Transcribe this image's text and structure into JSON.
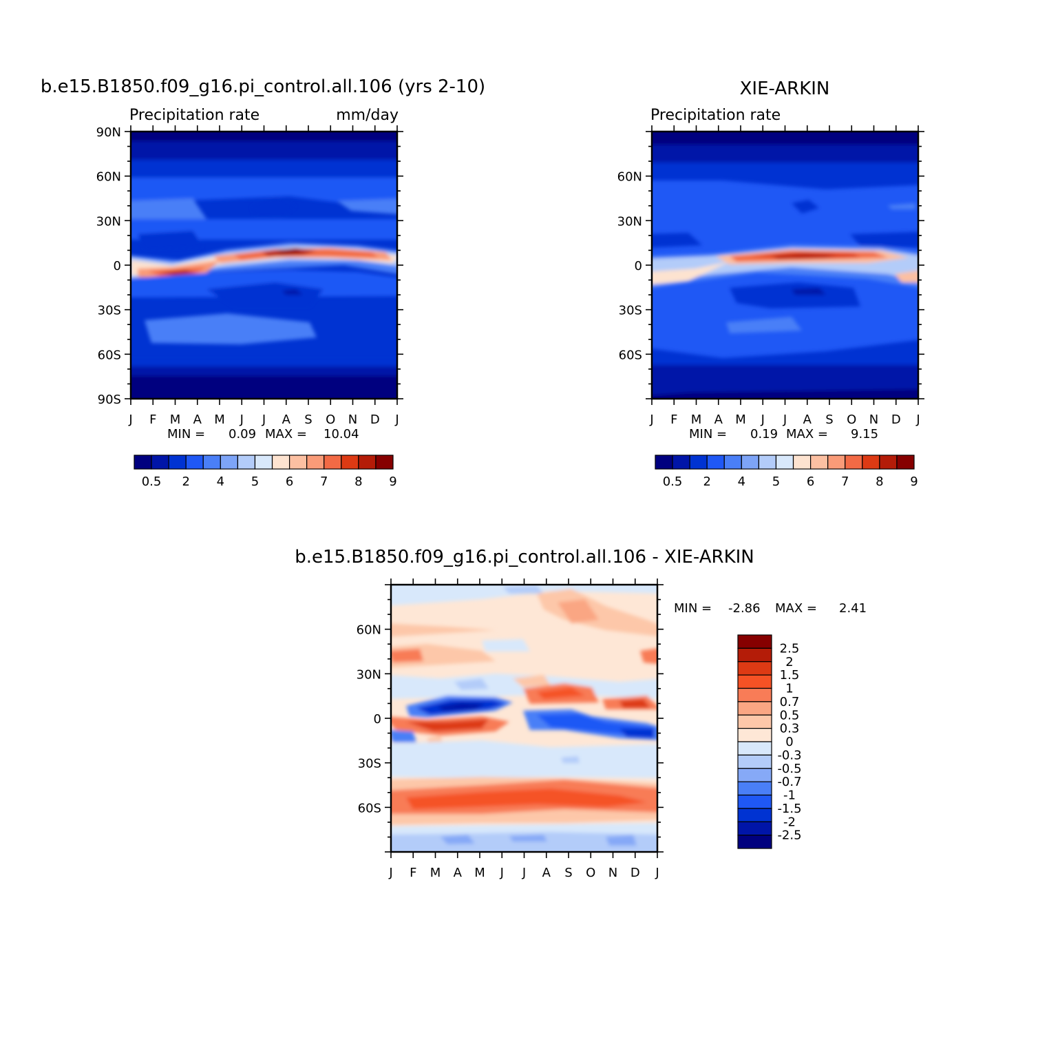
{
  "chart_data": [
    {
      "type": "heatmap",
      "title": "b.e15.B1850.f09_g16.pi_control.all.106 (yrs 2-10)",
      "subtitle_left": "Precipitation rate",
      "subtitle_right": "mm/day",
      "x_ticks": [
        "J",
        "F",
        "M",
        "A",
        "M",
        "J",
        "J",
        "A",
        "S",
        "O",
        "N",
        "D",
        "J"
      ],
      "y_ticks": [
        "90N",
        "60N",
        "30N",
        "0",
        "30S",
        "60S",
        "90S"
      ],
      "ylim": [
        -90,
        90
      ],
      "min_label": "MIN =",
      "min_value": "0.09",
      "max_label": "MAX =",
      "max_value": "10.04",
      "colorbar_labels": [
        "0.5",
        "2",
        "4",
        "5",
        "6",
        "7",
        "8",
        "9"
      ],
      "colorbar_colors": [
        "#00007f",
        "#0015a8",
        "#0033d2",
        "#1f58f5",
        "#4a7ff7",
        "#7da4f7",
        "#b3ccf9",
        "#d8e8fb",
        "#fde3d0",
        "#fcc0a2",
        "#f99b78",
        "#f26a45",
        "#dd3a14",
        "#b41c08",
        "#860000"
      ],
      "peaks": {
        "itcz_max": 10.04,
        "polar_min": 0.09
      }
    },
    {
      "type": "heatmap",
      "title": "XIE-ARKIN",
      "subtitle_left": "Precipitation rate",
      "x_ticks": [
        "J",
        "F",
        "M",
        "A",
        "M",
        "J",
        "J",
        "A",
        "S",
        "O",
        "N",
        "D",
        "J"
      ],
      "y_ticks": [
        "60N",
        "30N",
        "0",
        "30S",
        "60S"
      ],
      "ylim": [
        -90,
        90
      ],
      "min_label": "MIN =",
      "min_value": "0.19",
      "max_label": "MAX =",
      "max_value": "9.15",
      "colorbar_labels": [
        "0.5",
        "2",
        "4",
        "5",
        "6",
        "7",
        "8",
        "9"
      ],
      "colorbar_colors": [
        "#00007f",
        "#0015a8",
        "#0033d2",
        "#1f58f5",
        "#4a7ff7",
        "#7da4f7",
        "#b3ccf9",
        "#d8e8fb",
        "#fde3d0",
        "#fcc0a2",
        "#f99b78",
        "#f26a45",
        "#dd3a14",
        "#b41c08",
        "#860000"
      ],
      "peaks": {
        "itcz_max": 9.15,
        "polar_min": 0.19
      }
    },
    {
      "type": "heatmap",
      "title": "b.e15.B1850.f09_g16.pi_control.all.106 - XIE-ARKIN",
      "x_ticks": [
        "J",
        "F",
        "M",
        "A",
        "M",
        "J",
        "J",
        "A",
        "S",
        "O",
        "N",
        "D",
        "J"
      ],
      "y_ticks": [
        "60N",
        "30N",
        "0",
        "30S",
        "60S"
      ],
      "ylim": [
        -90,
        90
      ],
      "min_label": "MIN =",
      "min_value": "-2.86",
      "max_label": "MAX =",
      "max_value": "2.41",
      "colorbar_labels": [
        "2.5",
        "2",
        "1.5",
        "1",
        "0.7",
        "0.5",
        "0.3",
        "0",
        "-0.3",
        "-0.5",
        "-0.7",
        "-1",
        "-1.5",
        "-2",
        "-2.5"
      ],
      "colorbar_colors": [
        "#860000",
        "#b41c08",
        "#dd3a14",
        "#f55225",
        "#f87c57",
        "#faa683",
        "#fdc7a9",
        "#fee7d6",
        "#d8e8fb",
        "#b3ccf9",
        "#86a9f7",
        "#4a7ff7",
        "#1f58f5",
        "#0033d2",
        "#0015a8",
        "#00007f"
      ],
      "peaks": {
        "diff_max": 2.41,
        "diff_min": -2.86
      }
    }
  ]
}
